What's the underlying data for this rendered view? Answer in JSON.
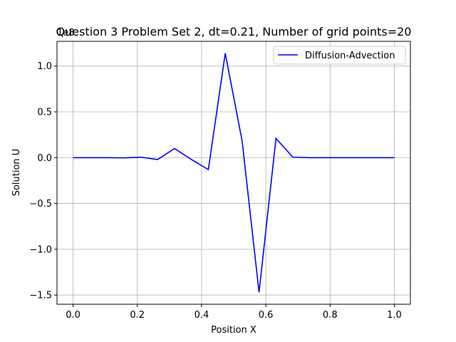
{
  "chart_data": {
    "type": "line",
    "title": "Question 3 Problem Set 2, dt=0.21, Number of grid points=20",
    "xlabel": "Position X",
    "ylabel": "Solution U",
    "y_offset_label": "1e8",
    "xlim": [
      -0.05,
      1.05
    ],
    "ylim": [
      -1.6,
      1.27
    ],
    "xticks": [
      0.0,
      0.2,
      0.4,
      0.6,
      0.8,
      1.0
    ],
    "xtick_labels": [
      "0.0",
      "0.2",
      "0.4",
      "0.6",
      "0.8",
      "1.0"
    ],
    "yticks": [
      -1.5,
      -1.0,
      -0.5,
      0.0,
      0.5,
      1.0
    ],
    "ytick_labels": [
      "−1.5",
      "−1.0",
      "−0.5",
      "0.0",
      "0.5",
      "1.0"
    ],
    "grid": true,
    "legend_position": "top-right",
    "series": [
      {
        "name": "Diffusion-Advection",
        "color": "#0000ff",
        "x": [
          0.0,
          0.0526,
          0.1053,
          0.1579,
          0.2105,
          0.2632,
          0.3158,
          0.3684,
          0.4211,
          0.4737,
          0.5263,
          0.5789,
          0.6316,
          0.6842,
          0.7368,
          0.7895,
          0.8421,
          0.8947,
          0.9474,
          1.0
        ],
        "values": [
          0.0,
          0.0,
          0.0,
          -0.002,
          0.005,
          -0.02,
          0.1,
          -0.02,
          -0.13,
          1.14,
          0.18,
          -1.47,
          0.21,
          0.005,
          0.0,
          0.0,
          0.0,
          0.0,
          0.0,
          0.0
        ]
      }
    ]
  }
}
